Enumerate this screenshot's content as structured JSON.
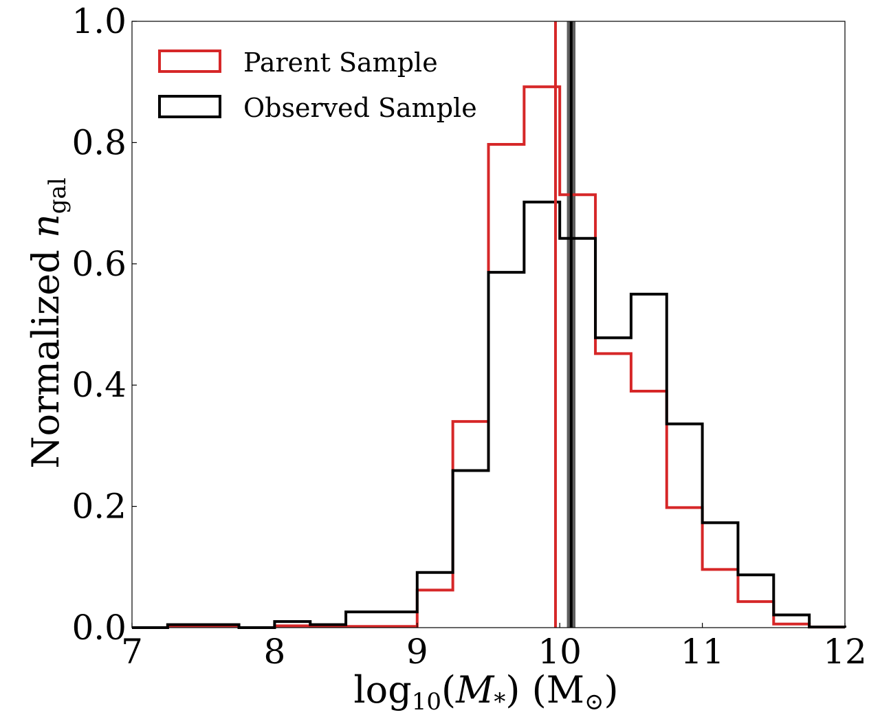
{
  "chart_data": {
    "type": "histogram",
    "xlabel_parts": [
      "log",
      "10",
      "(",
      "M",
      "*",
      ") (M",
      "⊙",
      ")"
    ],
    "ylabel_parts": [
      "Normalized ",
      "n",
      "gal"
    ],
    "xlim": [
      7,
      12
    ],
    "ylim": [
      0,
      1
    ],
    "xticks": [
      7,
      8,
      9,
      10,
      11,
      12
    ],
    "xtick_labels": [
      "7",
      "8",
      "9",
      "10",
      "11",
      "12"
    ],
    "yticks": [
      0.0,
      0.2,
      0.4,
      0.6,
      0.8,
      1.0
    ],
    "ytick_labels": [
      "0.0",
      "0.2",
      "0.4",
      "0.6",
      "0.8",
      "1.0"
    ],
    "bin_edges": [
      7.0,
      7.25,
      7.5,
      7.75,
      8.0,
      8.25,
      8.5,
      8.75,
      9.0,
      9.25,
      9.5,
      9.75,
      10.0,
      10.25,
      10.5,
      10.75,
      11.0,
      11.25,
      11.5,
      11.75,
      12.0
    ],
    "series": [
      {
        "name": "Parent Sample",
        "color": "#d62728",
        "values": [
          0.0,
          0.003,
          0.003,
          0.0,
          0.003,
          0.002,
          0.002,
          0.002,
          0.062,
          0.34,
          0.797,
          0.892,
          0.714,
          0.452,
          0.39,
          0.198,
          0.096,
          0.043,
          0.006,
          0.001
        ],
        "median": 9.97
      },
      {
        "name": "Observed Sample",
        "color": "#000000",
        "values": [
          0.0,
          0.005,
          0.005,
          0.0,
          0.01,
          0.005,
          0.026,
          0.026,
          0.091,
          0.259,
          0.586,
          0.702,
          0.642,
          0.478,
          0.55,
          0.336,
          0.173,
          0.087,
          0.021,
          0.001
        ],
        "median": 10.08,
        "median_band": [
          10.05,
          10.11
        ]
      }
    ],
    "legend_location": "upper-left",
    "legend": [
      "Parent Sample",
      "Observed Sample"
    ]
  }
}
